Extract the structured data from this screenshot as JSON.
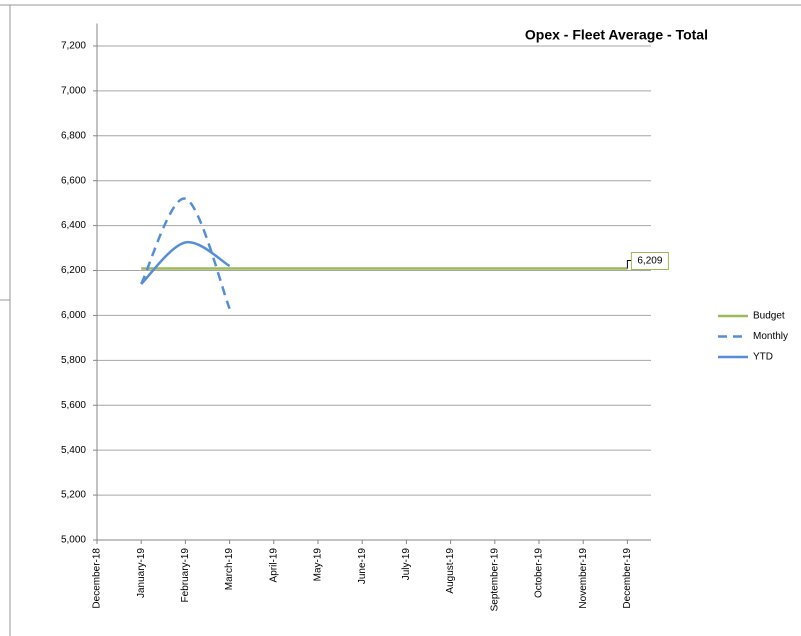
{
  "chart_data": {
    "type": "line",
    "title": "Opex - Fleet Average - Total",
    "categories": [
      "December-18",
      "January-19",
      "February-19",
      "March-19",
      "April-19",
      "May-19",
      "June-19",
      "July-19",
      "August-19",
      "September-19",
      "October-19",
      "November-19",
      "December-19"
    ],
    "series": [
      {
        "name": "Budget",
        "color": "#9bbb59",
        "dash": false,
        "values": [
          null,
          6209,
          6209,
          6209,
          6209,
          6209,
          6209,
          6209,
          6209,
          6209,
          6209,
          6209,
          6209
        ],
        "value_labels": [
          null,
          null,
          null,
          null,
          null,
          null,
          null,
          null,
          null,
          null,
          null,
          null,
          "6,209"
        ]
      },
      {
        "name": "Monthly",
        "color": "#558ed5",
        "dash": true,
        "values": [
          null,
          6140,
          6520,
          6030,
          null,
          null,
          null,
          null,
          null,
          null,
          null,
          null,
          null
        ]
      },
      {
        "name": "YTD",
        "color": "#558ed5",
        "dash": false,
        "values": [
          null,
          6140,
          6325,
          6220,
          null,
          null,
          null,
          null,
          null,
          null,
          null,
          null,
          null
        ]
      }
    ],
    "ylim": [
      5000,
      7300
    ],
    "yticks": [
      {
        "value": 5000,
        "label": "5,000"
      },
      {
        "value": 5200,
        "label": "5,200"
      },
      {
        "value": 5400,
        "label": "5,400"
      },
      {
        "value": 5600,
        "label": "5,600"
      },
      {
        "value": 5800,
        "label": "5,800"
      },
      {
        "value": 6000,
        "label": "6,000"
      },
      {
        "value": 6200,
        "label": "6,200"
      },
      {
        "value": 6400,
        "label": "6,400"
      },
      {
        "value": 6600,
        "label": "6,600"
      },
      {
        "value": 6800,
        "label": "6,800"
      },
      {
        "value": 7000,
        "label": "7,000"
      },
      {
        "value": 7200,
        "label": "7,200"
      }
    ],
    "grid": true,
    "legend": "right"
  }
}
